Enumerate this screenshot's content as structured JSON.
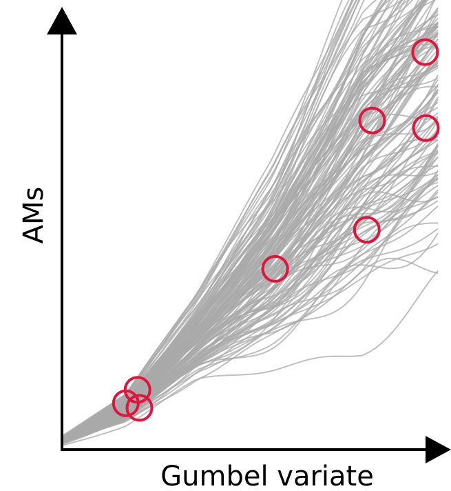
{
  "chart_data": {
    "type": "line",
    "xlabel": "Gumbel variate",
    "ylabel": "AMs",
    "xlim": [
      0,
      1
    ],
    "ylim": [
      0,
      1
    ],
    "grid": false,
    "legend": "none",
    "ticks": "none",
    "colors": {
      "ensemble_lines": "#a9a9a9",
      "observed_points": "#e0143c",
      "axes": "#000000"
    },
    "ensemble": {
      "count": 140,
      "knots_x": [
        0,
        0.17,
        0.36,
        0.56,
        0.8,
        1.0
      ],
      "mean_y": [
        0.02,
        0.09,
        0.25,
        0.42,
        0.69,
        0.86
      ],
      "spread_y": [
        0.004,
        0.014,
        0.04,
        0.09,
        0.17,
        0.2
      ]
    },
    "observed_points": [
      {
        "x": 0.17,
        "y": 0.103
      },
      {
        "x": 0.201,
        "y": 0.133
      },
      {
        "x": 0.206,
        "y": 0.093
      },
      {
        "x": 0.567,
        "y": 0.402
      },
      {
        "x": 0.811,
        "y": 0.489
      },
      {
        "x": 0.825,
        "y": 0.732
      },
      {
        "x": 0.968,
        "y": 0.715
      },
      {
        "x": 0.966,
        "y": 0.884
      }
    ]
  }
}
